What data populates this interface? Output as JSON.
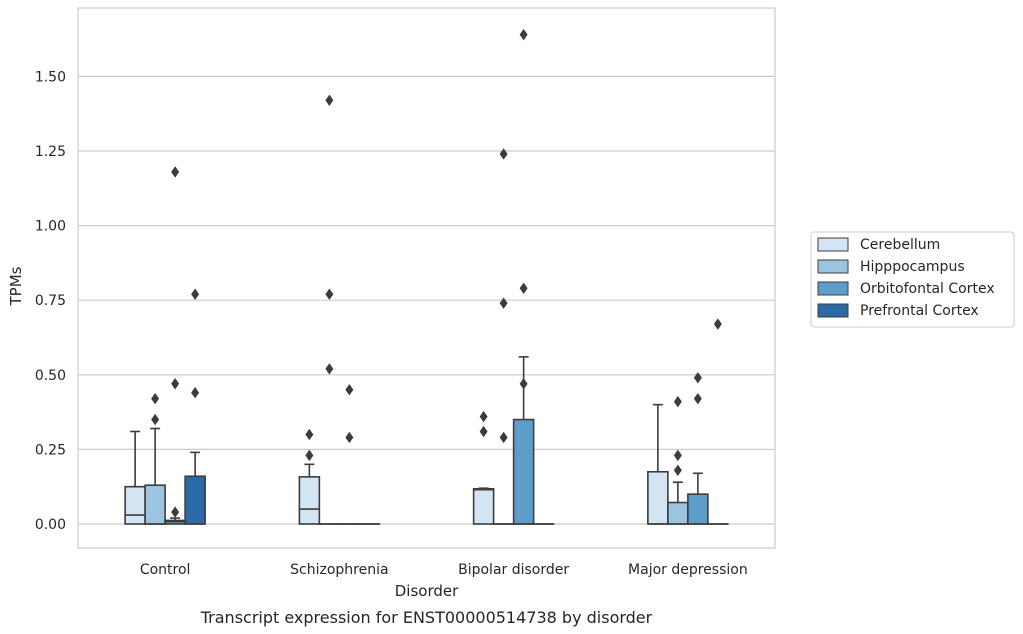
{
  "chart_data": {
    "type": "box",
    "caption": "Transcript expression for ENST00000514738 by disorder",
    "xlabel": "Disorder",
    "ylabel": "TPMs",
    "ylim": [
      -0.08,
      1.72
    ],
    "yticks": [
      "0.00",
      "0.25",
      "0.50",
      "0.75",
      "1.00",
      "1.25",
      "1.50"
    ],
    "ytick_values": [
      0,
      0.25,
      0.5,
      0.75,
      1.0,
      1.25,
      1.5
    ],
    "grid": true,
    "legend_position": "right",
    "categories": [
      "Control",
      "Schizophrenia",
      "Bipolar disorder",
      "Major depression"
    ],
    "series": [
      {
        "name": "Cerebellum",
        "color": "#d3e4f3",
        "boxes": [
          {
            "q1": 0,
            "median": 0.03,
            "q3": 0.125,
            "whisker_low": 0,
            "whisker_high": 0.31,
            "outliers": []
          },
          {
            "q1": 0,
            "median": 0.05,
            "q3": 0.158,
            "whisker_low": 0,
            "whisker_high": 0.2,
            "outliers": [
              0.23,
              0.3
            ]
          },
          {
            "q1": 0,
            "median": 0.115,
            "q3": 0.118,
            "whisker_low": 0,
            "whisker_high": 0.12,
            "outliers": [
              0.31,
              0.36
            ]
          },
          {
            "q1": 0,
            "median": 0,
            "q3": 0.175,
            "whisker_low": 0,
            "whisker_high": 0.4,
            "outliers": []
          }
        ]
      },
      {
        "name": "Hipppocampus",
        "color": "#9cc4de",
        "boxes": [
          {
            "q1": 0,
            "median": 0,
            "q3": 0.13,
            "whisker_low": 0,
            "whisker_high": 0.32,
            "outliers": [
              0.35,
              0.42
            ]
          },
          {
            "q1": 0,
            "median": 0,
            "q3": 0,
            "whisker_low": 0,
            "whisker_high": 0,
            "outliers": [
              0.52,
              0.77,
              1.42
            ]
          },
          {
            "q1": 0,
            "median": 0,
            "q3": 0,
            "whisker_low": 0,
            "whisker_high": 0,
            "outliers": [
              0.29,
              0.74,
              1.24
            ]
          },
          {
            "q1": 0,
            "median": 0,
            "q3": 0.072,
            "whisker_low": 0,
            "whisker_high": 0.14,
            "outliers": [
              0.18,
              0.23,
              0.41
            ]
          }
        ]
      },
      {
        "name": "Orbitofontal Cortex",
        "color": "#5c9ec9",
        "boxes": [
          {
            "q1": 0,
            "median": 0.008,
            "q3": 0.012,
            "whisker_low": 0,
            "whisker_high": 0.02,
            "outliers": [
              0.04,
              0.47,
              1.18
            ]
          },
          {
            "q1": 0,
            "median": 0,
            "q3": 0,
            "whisker_low": 0,
            "whisker_high": 0,
            "outliers": [
              0.29,
              0.45
            ]
          },
          {
            "q1": 0,
            "median": 0,
            "q3": 0.35,
            "whisker_low": 0,
            "whisker_high": 0.56,
            "outliers": [
              0.47,
              0.79,
              1.64
            ]
          },
          {
            "q1": 0,
            "median": 0,
            "q3": 0.1,
            "whisker_low": 0,
            "whisker_high": 0.17,
            "outliers": [
              0.42,
              0.49
            ]
          }
        ]
      },
      {
        "name": "Prefrontal Cortex",
        "color": "#2b6aa6",
        "boxes": [
          {
            "q1": 0,
            "median": 0,
            "q3": 0.16,
            "whisker_low": 0,
            "whisker_high": 0.24,
            "outliers": [
              0.44,
              0.77
            ]
          },
          {
            "q1": 0,
            "median": 0,
            "q3": 0,
            "whisker_low": 0,
            "whisker_high": 0,
            "outliers": []
          },
          {
            "q1": 0,
            "median": 0,
            "q3": 0,
            "whisker_low": 0,
            "whisker_high": 0,
            "outliers": []
          },
          {
            "q1": 0,
            "median": 0,
            "q3": 0,
            "whisker_low": 0,
            "whisker_high": 0,
            "outliers": [
              0.67
            ]
          }
        ]
      }
    ]
  }
}
